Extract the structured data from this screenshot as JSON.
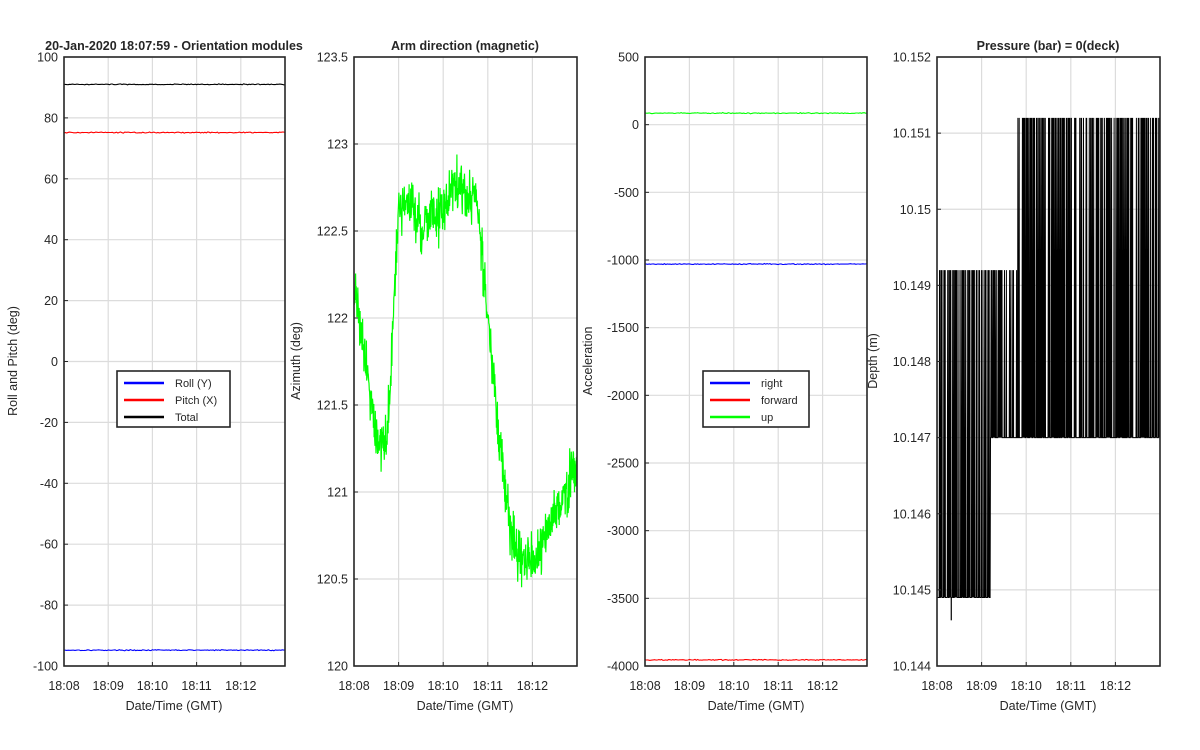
{
  "chart_data": [
    {
      "type": "line",
      "title": "20-Jan-2020 18:07:59 - Orientation modules",
      "xlabel": "Date/Time (GMT)",
      "ylabel": "Roll and Pitch (deg)",
      "x_ticks": [
        "18:08",
        "18:09",
        "18:10",
        "18:11",
        "18:12"
      ],
      "xlim": [
        "18:08",
        "18:13"
      ],
      "ylim": [
        -100,
        100
      ],
      "y_ticks": [
        "-100",
        "-80",
        "-60",
        "-40",
        "-20",
        "0",
        "20",
        "40",
        "60",
        "80",
        "100"
      ],
      "grid": true,
      "legend_position": "center",
      "series": [
        {
          "name": "Roll (Y)",
          "color": "#0000ff",
          "values_approx": -94.8
        },
        {
          "name": "Pitch (X)",
          "color": "#ff0000",
          "values_approx": 75.2
        },
        {
          "name": "Total",
          "color": "#000000",
          "values_approx": 91.0
        }
      ]
    },
    {
      "type": "line",
      "title": "Arm direction (magnetic)",
      "xlabel": "Date/Time (GMT)",
      "ylabel": "Azimuth (deg)",
      "x_ticks": [
        "18:08",
        "18:09",
        "18:10",
        "18:11",
        "18:12"
      ],
      "xlim": [
        "18:08",
        "18:13"
      ],
      "ylim": [
        120,
        123.5
      ],
      "y_ticks": [
        "120",
        "120.5",
        "121",
        "121.5",
        "122",
        "122.5",
        "123",
        "123.5"
      ],
      "grid": true,
      "series": [
        {
          "color": "#00ff00",
          "x_min": [
            0.0,
            0.25,
            0.5,
            0.75,
            1.0,
            1.25,
            1.5,
            1.75,
            2.0,
            2.25,
            2.5,
            2.75,
            3.0,
            3.25,
            3.5,
            3.75,
            4.0,
            4.25,
            4.5,
            4.75,
            5.0
          ],
          "y": [
            122.2,
            121.8,
            121.3,
            121.3,
            122.6,
            122.7,
            122.5,
            122.6,
            122.6,
            122.8,
            122.7,
            122.7,
            122.0,
            121.3,
            120.8,
            120.6,
            120.6,
            120.7,
            120.9,
            121.0,
            121.2
          ]
        }
      ]
    },
    {
      "type": "line",
      "xlabel": "Date/Time (GMT)",
      "ylabel": "Acceleration",
      "x_ticks": [
        "18:08",
        "18:09",
        "18:10",
        "18:11",
        "18:12"
      ],
      "xlim": [
        "18:08",
        "18:13"
      ],
      "ylim": [
        -4000,
        500
      ],
      "y_ticks": [
        "-4000",
        "-3500",
        "-3000",
        "-2500",
        "-2000",
        "-1500",
        "-1000",
        "-500",
        "0",
        "500"
      ],
      "grid": true,
      "legend_position": "center",
      "series": [
        {
          "name": "right",
          "color": "#0000ff",
          "values_approx": -1030
        },
        {
          "name": "forward",
          "color": "#ff0000",
          "values_approx": -3955
        },
        {
          "name": "up",
          "color": "#00ff00",
          "values_approx": 85
        }
      ]
    },
    {
      "type": "line",
      "title": "Pressure (bar) = 0(deck)",
      "xlabel": "Date/Time (GMT)",
      "ylabel": "Depth (m)",
      "x_ticks": [
        "18:08",
        "18:09",
        "18:10",
        "18:11",
        "18:12"
      ],
      "xlim": [
        "18:08",
        "18:13"
      ],
      "ylim": [
        10.144,
        10.152
      ],
      "y_ticks": [
        "10.144",
        "10.145",
        "10.146",
        "10.147",
        "10.148",
        "10.149",
        "10.15",
        "10.151",
        "10.152"
      ],
      "grid": true,
      "series": [
        {
          "color": "#000000",
          "quantized_levels": [
            10.1446,
            10.1449,
            10.147,
            10.1492,
            10.1512
          ],
          "regimes": [
            {
              "from_min": 0.0,
              "to_min": 0.55,
              "low": 10.1449,
              "high": 10.1492
            },
            {
              "from_min": 0.55,
              "to_min": 1.2,
              "low": 10.1449,
              "high": 10.1492
            },
            {
              "from_min": 1.2,
              "to_min": 1.8,
              "low": 10.147,
              "high": 10.1492
            },
            {
              "from_min": 1.8,
              "to_min": 5.0,
              "low": 10.147,
              "high": 10.1512
            }
          ]
        }
      ]
    }
  ]
}
